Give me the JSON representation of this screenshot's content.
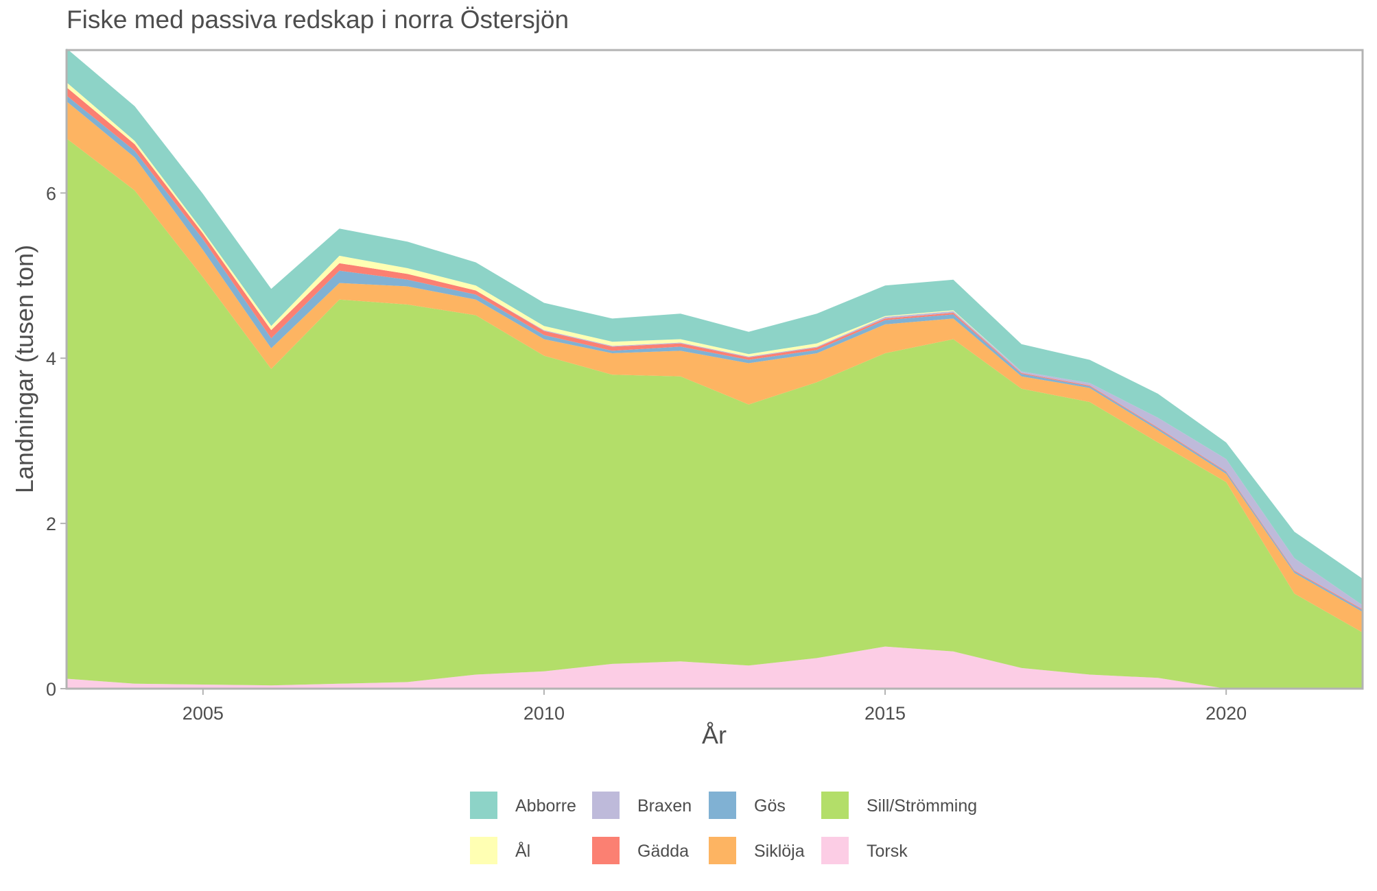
{
  "chart_data": {
    "type": "area",
    "stacked": true,
    "title": "Fiske med passiva redskap i norra Östersjön",
    "xlabel": "År",
    "ylabel": "Landningar (tusen ton)",
    "x": [
      2003,
      2004,
      2005,
      2006,
      2007,
      2008,
      2009,
      2010,
      2011,
      2012,
      2013,
      2014,
      2015,
      2016,
      2017,
      2018,
      2019,
      2020,
      2021,
      2022
    ],
    "xlim": [
      2003,
      2022
    ],
    "ylim": [
      0,
      7.73
    ],
    "xticks": [
      2005,
      2010,
      2015,
      2020
    ],
    "yticks": [
      0,
      2,
      4,
      6
    ],
    "grid": false,
    "legend_position": "bottom",
    "series": [
      {
        "name": "Torsk",
        "color": "#FCCDE5",
        "values": [
          0.12,
          0.06,
          0.05,
          0.04,
          0.06,
          0.08,
          0.17,
          0.21,
          0.3,
          0.33,
          0.28,
          0.37,
          0.51,
          0.45,
          0.25,
          0.17,
          0.13,
          0.0,
          0.0,
          0.0
        ]
      },
      {
        "name": "Sill/Strömming",
        "color": "#B3DE69",
        "values": [
          6.54,
          5.97,
          4.93,
          3.83,
          4.65,
          4.57,
          4.35,
          3.82,
          3.5,
          3.45,
          3.16,
          3.34,
          3.55,
          3.78,
          3.38,
          3.3,
          2.85,
          2.5,
          1.15,
          0.68
        ]
      },
      {
        "name": "Siklöja",
        "color": "#FDB462",
        "values": [
          0.45,
          0.4,
          0.33,
          0.25,
          0.2,
          0.22,
          0.19,
          0.2,
          0.26,
          0.31,
          0.5,
          0.35,
          0.35,
          0.25,
          0.15,
          0.17,
          0.15,
          0.1,
          0.25,
          0.25
        ]
      },
      {
        "name": "Gös",
        "color": "#80B1D3",
        "values": [
          0.07,
          0.08,
          0.13,
          0.12,
          0.15,
          0.08,
          0.06,
          0.05,
          0.03,
          0.05,
          0.04,
          0.04,
          0.05,
          0.05,
          0.03,
          0.02,
          0.02,
          0.02,
          0.02,
          0.02
        ]
      },
      {
        "name": "Gädda",
        "color": "#FB8072",
        "values": [
          0.1,
          0.08,
          0.07,
          0.1,
          0.09,
          0.07,
          0.05,
          0.05,
          0.05,
          0.04,
          0.03,
          0.03,
          0.02,
          0.02,
          0.01,
          0.01,
          0.01,
          0.01,
          0.01,
          0.01
        ]
      },
      {
        "name": "Braxen",
        "color": "#BEBADA",
        "values": [
          0.0,
          0.0,
          0.0,
          0.0,
          0.0,
          0.0,
          0.0,
          0.01,
          0.01,
          0.01,
          0.01,
          0.01,
          0.02,
          0.02,
          0.02,
          0.03,
          0.12,
          0.15,
          0.15,
          0.05
        ]
      },
      {
        "name": "Ål",
        "color": "#FFFFB3",
        "values": [
          0.06,
          0.04,
          0.03,
          0.05,
          0.09,
          0.07,
          0.06,
          0.05,
          0.05,
          0.04,
          0.03,
          0.04,
          0.01,
          0.01,
          0.0,
          0.0,
          0.0,
          0.0,
          0.0,
          0.0
        ]
      },
      {
        "name": "Abborre",
        "color": "#8DD3C7",
        "values": [
          0.41,
          0.42,
          0.45,
          0.45,
          0.33,
          0.32,
          0.28,
          0.28,
          0.28,
          0.31,
          0.27,
          0.36,
          0.37,
          0.37,
          0.33,
          0.28,
          0.29,
          0.2,
          0.32,
          0.32
        ]
      }
    ],
    "legend_rows": [
      [
        "Abborre",
        "Braxen",
        "Gös",
        "Sill/Strömming"
      ],
      [
        "Ål",
        "Gädda",
        "Siklöja",
        "Torsk"
      ]
    ]
  }
}
